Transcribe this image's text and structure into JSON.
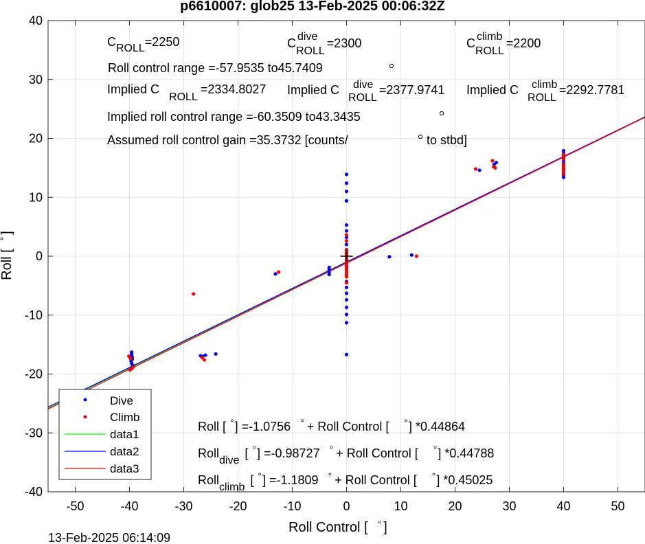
{
  "chart_data": {
    "type": "scatter",
    "title": "p6610007: glob25 13-Feb-2025 00:06:32Z",
    "xlabel": "Roll Control [",
    "xlabel_unit": "°",
    "xlabel_end": "]",
    "ylabel": "Roll [",
    "ylabel_unit": "°",
    "ylabel_end": "]",
    "xlim": [
      -55,
      55
    ],
    "ylim": [
      -40,
      40
    ],
    "xticks": [
      -50,
      -40,
      -30,
      -20,
      -10,
      0,
      10,
      20,
      30,
      40,
      50
    ],
    "yticks": [
      -40,
      -30,
      -20,
      -10,
      0,
      10,
      20,
      30,
      40
    ],
    "grid": true,
    "legend_position": "bottom-left",
    "timestamp": "13-Feb-2025 06:14:09",
    "series": [
      {
        "name": "Dive",
        "kind": "points",
        "color": "#0000ff",
        "points": [
          [
            -39.6,
            -16.3
          ],
          [
            -39.6,
            -16.6
          ],
          [
            -39.6,
            -16.9
          ],
          [
            -39.5,
            -17.2
          ],
          [
            -39.5,
            -17.5
          ],
          [
            -39.7,
            -17.8
          ],
          [
            -39.6,
            -18.2
          ],
          [
            -39.4,
            -18.5
          ],
          [
            -39.6,
            -18.9
          ],
          [
            -39.8,
            -19.2
          ],
          [
            -26.9,
            -16.9
          ],
          [
            -26.5,
            -17.0
          ],
          [
            -26.0,
            -16.8
          ],
          [
            -24.1,
            -16.6
          ],
          [
            -13.1,
            -3.0
          ],
          [
            -3.2,
            -1.9
          ],
          [
            -3.2,
            -2.3
          ],
          [
            -3.2,
            -2.7
          ],
          [
            -3.2,
            -3.1
          ],
          [
            0,
            13.9
          ],
          [
            0,
            12.4
          ],
          [
            0,
            11.0
          ],
          [
            0,
            9.4
          ],
          [
            0,
            5.3
          ],
          [
            0,
            4.3
          ],
          [
            0,
            3.2
          ],
          [
            0,
            2.0
          ],
          [
            0,
            1.1
          ],
          [
            0,
            0.2
          ],
          [
            0,
            -0.6
          ],
          [
            0,
            -1.3
          ],
          [
            0,
            -2.0
          ],
          [
            0,
            -2.7
          ],
          [
            0,
            -3.4
          ],
          [
            0,
            -4.3
          ],
          [
            0,
            -5.3
          ],
          [
            0,
            -6.3
          ],
          [
            0,
            -7.4
          ],
          [
            0,
            -8.7
          ],
          [
            0,
            -9.9
          ],
          [
            0,
            -11.3
          ],
          [
            0,
            -16.7
          ],
          [
            7.9,
            -0.1
          ],
          [
            12.0,
            0.2
          ],
          [
            24.5,
            14.6
          ],
          [
            27.2,
            15.6
          ],
          [
            27.6,
            15.9
          ],
          [
            40,
            17.9
          ],
          [
            40,
            17.5
          ],
          [
            40,
            17.1
          ],
          [
            40,
            16.7
          ],
          [
            40,
            16.3
          ],
          [
            40,
            15.8
          ],
          [
            40,
            15.4
          ],
          [
            40,
            15.0
          ],
          [
            40,
            14.6
          ],
          [
            40,
            14.2
          ],
          [
            40,
            13.8
          ],
          [
            40,
            13.4
          ]
        ]
      },
      {
        "name": "Climb",
        "kind": "points",
        "color": "#ff0000",
        "points": [
          [
            -40.1,
            -17.0
          ],
          [
            -39.8,
            -17.4
          ],
          [
            -39.3,
            -18.8
          ],
          [
            -39.6,
            -19.1
          ],
          [
            -39.9,
            -19.3
          ],
          [
            -26.6,
            -17.2
          ],
          [
            -26.2,
            -17.6
          ],
          [
            -28.2,
            -6.4
          ],
          [
            -12.5,
            -2.7
          ],
          [
            0,
            3.6
          ],
          [
            0,
            2.6
          ],
          [
            0,
            1.0
          ],
          [
            0,
            0.6
          ],
          [
            0,
            0.3
          ],
          [
            0,
            -0.1
          ],
          [
            0,
            -0.5
          ],
          [
            0,
            -0.9
          ],
          [
            0,
            -1.2
          ],
          [
            0,
            -1.6
          ],
          [
            0,
            -1.9
          ],
          [
            0,
            -2.3
          ],
          [
            0,
            -2.7
          ],
          [
            0,
            -3.1
          ],
          [
            0,
            -3.5
          ],
          [
            0,
            -4.5
          ],
          [
            12.9,
            0.0
          ],
          [
            23.8,
            14.8
          ],
          [
            26.9,
            16.2
          ],
          [
            27.1,
            15.2
          ],
          [
            27.4,
            15.0
          ],
          [
            40,
            17.3
          ],
          [
            40,
            16.9
          ],
          [
            40,
            16.5
          ],
          [
            40,
            15.6
          ],
          [
            40,
            15.2
          ],
          [
            40,
            14.8
          ],
          [
            40,
            14.4
          ],
          [
            40,
            14.0
          ]
        ]
      },
      {
        "name": "data1",
        "kind": "line",
        "color": "#00ff00",
        "x": [
          -55,
          55
        ],
        "y": [
          -25.75,
          23.6
        ]
      },
      {
        "name": "data2",
        "kind": "line",
        "color": "#0000ff",
        "x": [
          -55,
          55
        ],
        "y": [
          -25.62,
          23.65
        ]
      },
      {
        "name": "data3",
        "kind": "line",
        "color": "#ff0000",
        "x": [
          -55,
          55
        ],
        "y": [
          -25.95,
          23.58
        ]
      }
    ]
  },
  "annotations": {
    "c_roll": {
      "main": "C",
      "sub": "ROLL",
      "value": "=2250"
    },
    "c_roll_dive": {
      "main": "C",
      "sup": "dive",
      "sub": "ROLL",
      "value": "=2300"
    },
    "c_roll_climb": {
      "main": "C",
      "sup": "climb",
      "sub": "ROLL",
      "value": "=2200"
    },
    "roll_control_range": "Roll control range =-57.9535 to45.7409",
    "implied_c": {
      "label": "Implied C",
      "sub": "ROLL",
      "value": "=2334.8027"
    },
    "implied_c_dive": {
      "label": "Implied C",
      "sup": "dive",
      "sub": "ROLL",
      "value": "=2377.9741"
    },
    "implied_c_climb": {
      "label": "Implied C",
      "sup": "climb",
      "sub": "ROLL",
      "value": "=2292.7781"
    },
    "implied_range": "Implied roll control range =-60.3509 to43.3435",
    "gain_a": "Assumed roll control gain =35.3732 [counts/",
    "gain_b": "to stbd]",
    "deg": "°",
    "fit_all": {
      "a": "Roll [",
      "b": "] =-1.0756",
      "c": "+ Roll Control [",
      "d": "] *0.44864"
    },
    "fit_dive": {
      "name": "Roll",
      "sub": "dive",
      "a": "[",
      "b": "] =-0.98727",
      "c": "+ Roll Control [",
      "d": "] *0.44788"
    },
    "fit_climb": {
      "name": "Roll",
      "sub": "climb",
      "a": "[",
      "b": "] =-1.1809",
      "c": "+ Roll Control [",
      "d": "] *0.45025"
    }
  }
}
